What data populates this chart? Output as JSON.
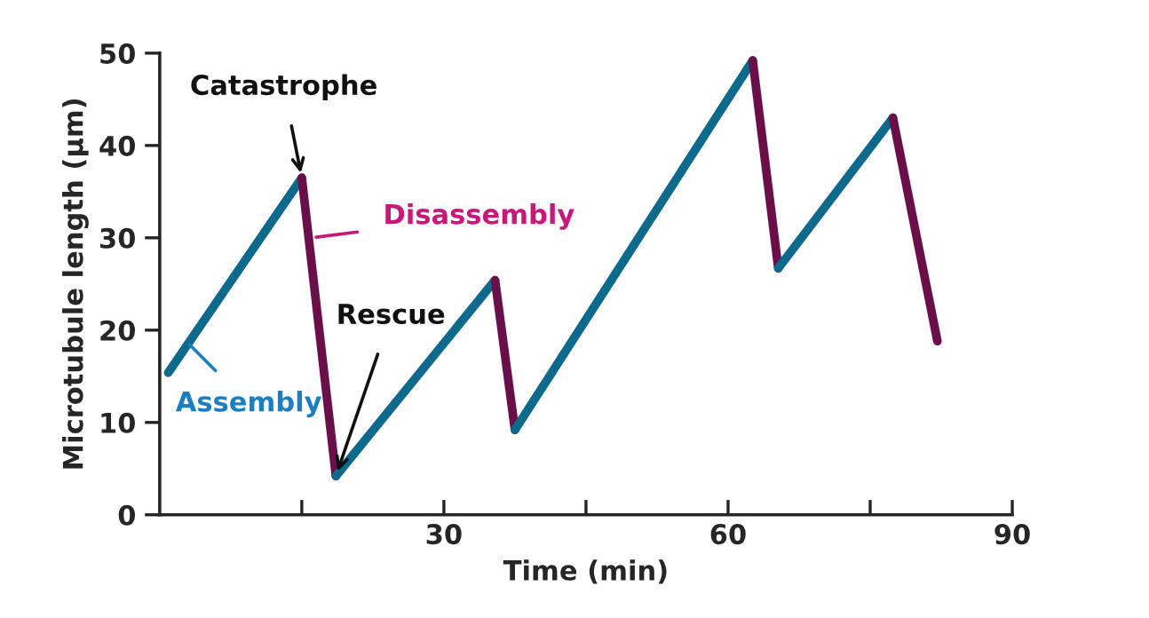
{
  "chart_data": {
    "type": "line",
    "xlabel": "Time (min)",
    "ylabel": "Microtubule length (µm)",
    "x": [
      0.9,
      15,
      18.6,
      35.4,
      37.5,
      62.6,
      65.3,
      77.4,
      82.1
    ],
    "series": [
      {
        "color": "#0e6a8c",
        "values": [
          15.4,
          36.5,
          null,
          null,
          null,
          null,
          null,
          null,
          null
        ]
      },
      {
        "color": "#6b0f4a",
        "values": [
          null,
          36.5,
          4.2,
          null,
          null,
          null,
          null,
          null,
          null
        ]
      },
      {
        "color": "#0e6a8c",
        "values": [
          null,
          null,
          4.2,
          25.4,
          null,
          null,
          null,
          null,
          null
        ]
      },
      {
        "color": "#6b0f4a",
        "values": [
          null,
          null,
          null,
          25.4,
          9.2,
          null,
          null,
          null,
          null
        ]
      },
      {
        "color": "#0e6a8c",
        "values": [
          null,
          null,
          null,
          null,
          9.2,
          49.2,
          null,
          null,
          null
        ]
      },
      {
        "color": "#6b0f4a",
        "values": [
          null,
          null,
          null,
          null,
          null,
          49.2,
          26.7,
          null,
          null
        ]
      },
      {
        "color": "#0e6a8c",
        "values": [
          null,
          null,
          null,
          null,
          null,
          null,
          26.7,
          43,
          null
        ]
      },
      {
        "color": "#6b0f4a",
        "values": [
          null,
          null,
          null,
          null,
          null,
          null,
          null,
          43,
          18.8
        ]
      }
    ],
    "annotations": [
      {
        "text": "Catastrophe",
        "x": 15,
        "y": 36.5
      },
      {
        "text": "Disassembly",
        "x": 16,
        "y": 30
      },
      {
        "text": "Rescue",
        "x": 18.6,
        "y": 4.2
      },
      {
        "text": "Assembly",
        "x": 2.8,
        "y": 18.8
      }
    ],
    "xlim": [
      0,
      90
    ],
    "ylim": [
      0,
      50
    ],
    "xticks": [
      {
        "value": 15,
        "label": null
      },
      30,
      {
        "value": 45,
        "label": null
      },
      60,
      {
        "value": 75,
        "label": null
      },
      90
    ],
    "yticks": [
      0,
      10,
      20,
      30,
      40,
      50
    ],
    "grid": false,
    "legend": false,
    "marker": "none",
    "line_style": "solid"
  }
}
